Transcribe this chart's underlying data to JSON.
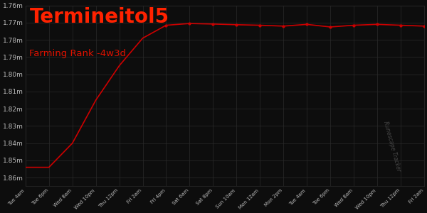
{
  "title": "Termineitol5",
  "subtitle": "Farming Rank -4w3d",
  "background_color": "#0d0d0d",
  "plot_bg_color": "#0d0d0d",
  "grid_color": "#2a2a2a",
  "line_color": "#cc0000",
  "text_color": "#bbbbbb",
  "title_color": "#ff2200",
  "subtitle_color": "#dd1100",
  "ytick_labels": [
    "1.76m",
    "1.77m",
    "1.78m",
    "1.79m",
    "1.80m",
    "1.81m",
    "1.82m",
    "1.83m",
    "1.84m",
    "1.85m",
    "1.86m"
  ],
  "ytick_values": [
    1760000,
    1770000,
    1780000,
    1790000,
    1800000,
    1810000,
    1820000,
    1830000,
    1840000,
    1850000,
    1860000
  ],
  "xtick_labels": [
    "Tue 4am",
    "Tue 6pm",
    "Wed 8am",
    "Wed 10pm",
    "Thu 12pm",
    "Fri 2am",
    "Fri 4pm",
    "Sat 6am",
    "Sat 8pm",
    "Sun 10am",
    "Mon 12am",
    "Mon 2pm",
    "Tue 4am",
    "Tue 6pm",
    "Wed 8am",
    "Wed 10pm",
    "Thu 12pm",
    "Fri 2am"
  ],
  "ymin": 1760000,
  "ymax": 1865000,
  "watermark": "Runescape Tracker",
  "line_data_x": [
    0,
    1,
    2,
    3,
    4,
    5,
    6,
    7,
    8,
    9,
    10,
    11,
    12,
    13,
    14,
    15,
    16,
    17
  ],
  "line_data_y": [
    1854000,
    1854000,
    1840000,
    1815000,
    1795000,
    1779000,
    1771500,
    1770500,
    1770800,
    1771200,
    1771500,
    1772000,
    1771000,
    1772500,
    1771500,
    1771000,
    1771500,
    1772000
  ]
}
